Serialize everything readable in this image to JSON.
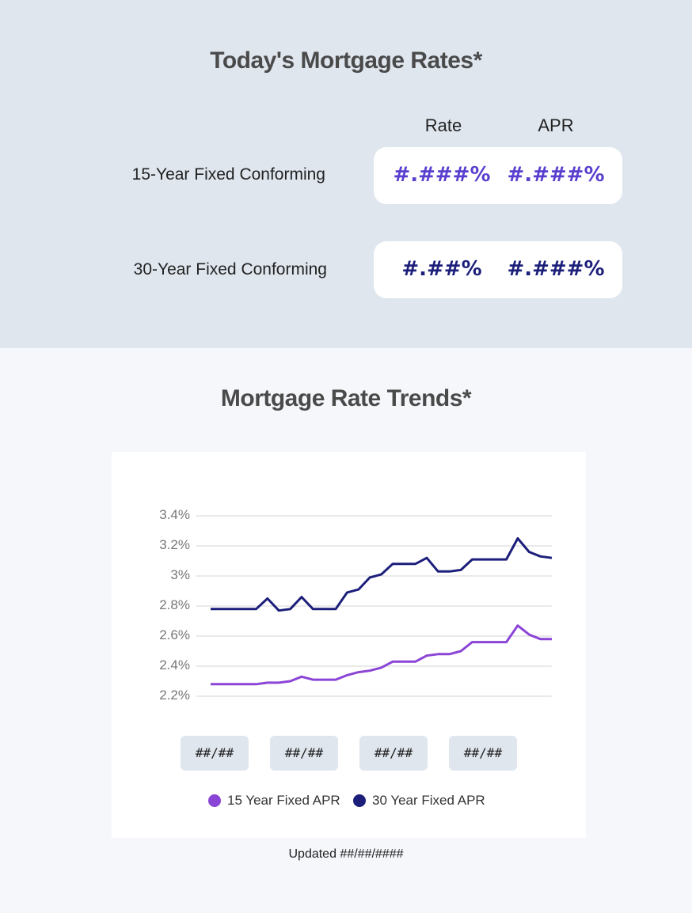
{
  "rates": {
    "title": "Today's Mortgage Rates*",
    "col_rate": "Rate",
    "col_apr": "APR",
    "rows": [
      {
        "label": "15-Year Fixed Conforming",
        "rate": "#.###%",
        "apr": "#.###%",
        "color": "#5a3fcf"
      },
      {
        "label": "30-Year Fixed Conforming",
        "rate": "#.##%",
        "apr": "#.###%",
        "color": "#1c1f7a"
      }
    ]
  },
  "trends": {
    "title": "Mortgage Rate Trends*",
    "date_labels": [
      "##/##",
      "##/##",
      "##/##",
      "##/##"
    ],
    "updated": "Updated ##/##/####"
  },
  "chart_data": {
    "type": "line",
    "title": "Mortgage Rate Trends*",
    "xlabel": "",
    "ylabel": "",
    "ylim": [
      2.2,
      3.4
    ],
    "yticks": [
      "3.4%",
      "3.2%",
      "3%",
      "2.8%",
      "2.6%",
      "2.4%",
      "2.2%"
    ],
    "ytick_values": [
      3.4,
      3.2,
      3.0,
      2.8,
      2.6,
      2.4,
      2.2
    ],
    "grid": true,
    "legend_position": "bottom",
    "series": [
      {
        "name": "15 Year Fixed APR",
        "color": "#8b45d6",
        "values": [
          2.28,
          2.28,
          2.28,
          2.28,
          2.28,
          2.29,
          2.29,
          2.3,
          2.33,
          2.31,
          2.31,
          2.31,
          2.34,
          2.36,
          2.37,
          2.39,
          2.43,
          2.43,
          2.43,
          2.47,
          2.48,
          2.48,
          2.5,
          2.56,
          2.56,
          2.56,
          2.56,
          2.67,
          2.61,
          2.58,
          2.58
        ]
      },
      {
        "name": "30 Year Fixed APR",
        "color": "#1c1f7a",
        "values": [
          2.78,
          2.78,
          2.78,
          2.78,
          2.78,
          2.85,
          2.77,
          2.78,
          2.86,
          2.78,
          2.78,
          2.78,
          2.89,
          2.91,
          2.99,
          3.01,
          3.08,
          3.08,
          3.08,
          3.12,
          3.03,
          3.03,
          3.04,
          3.11,
          3.11,
          3.11,
          3.11,
          3.25,
          3.16,
          3.13,
          3.12
        ]
      }
    ]
  }
}
